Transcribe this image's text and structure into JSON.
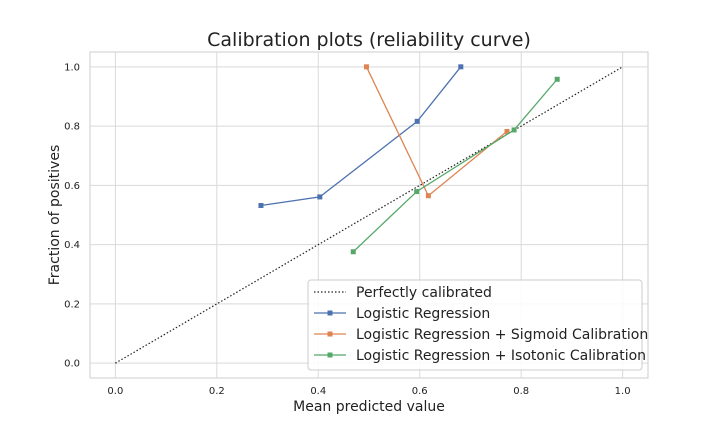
{
  "chart_data": {
    "type": "line",
    "title": "Calibration plots  (reliability curve)",
    "xlabel": "Mean predicted value",
    "ylabel": "Fraction of positives",
    "xlim": [
      -0.05,
      1.05
    ],
    "ylim": [
      -0.05,
      1.05
    ],
    "xticks": [
      "0.0",
      "0.2",
      "0.4",
      "0.6",
      "0.8",
      "1.0"
    ],
    "yticks": [
      "0.0",
      "0.2",
      "0.4",
      "0.6",
      "0.8",
      "1.0"
    ],
    "grid": true,
    "legend_position": "lower-right",
    "series": [
      {
        "name": "Perfectly calibrated",
        "color": "#222222",
        "style": "dotted",
        "marker": "none",
        "x": [
          0.0,
          1.0
        ],
        "y": [
          0.0,
          1.0
        ]
      },
      {
        "name": "Logistic Regression",
        "color": "#4c72b0",
        "style": "solid",
        "marker": "square",
        "x": [
          0.287,
          0.403,
          0.595,
          0.681
        ],
        "y": [
          0.532,
          0.561,
          0.816,
          1.0
        ]
      },
      {
        "name": "Logistic Regression + Sigmoid Calibration",
        "color": "#dd8452",
        "style": "solid",
        "marker": "square",
        "x": [
          0.495,
          0.617,
          0.772
        ],
        "y": [
          1.0,
          0.565,
          0.782
        ]
      },
      {
        "name": "Logistic Regression + Isotonic Calibration",
        "color": "#55a868",
        "style": "solid",
        "marker": "square",
        "x": [
          0.469,
          0.594,
          0.786,
          0.871
        ],
        "y": [
          0.376,
          0.579,
          0.787,
          0.958
        ]
      }
    ]
  }
}
